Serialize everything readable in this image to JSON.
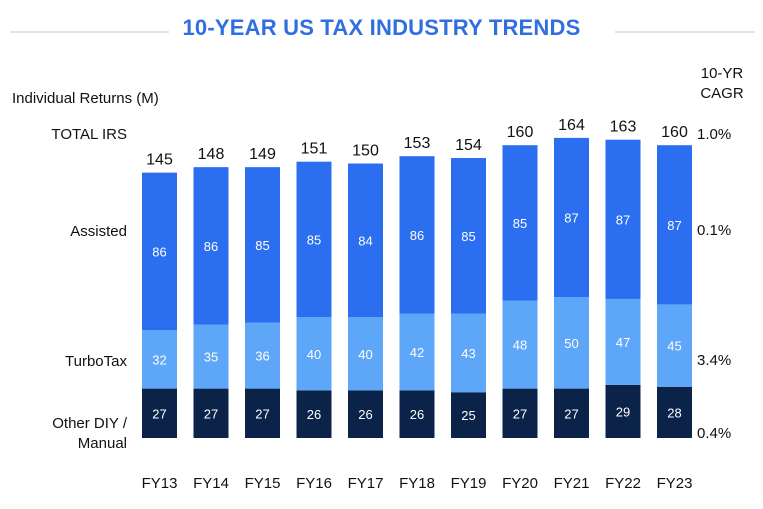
{
  "title": "10-YEAR US TAX INDUSTRY TRENDS",
  "ylabel": "Individual Returns (M)",
  "cagr_header_line1": "10-YR",
  "cagr_header_line2": "CAGR",
  "row_labels": {
    "total": "TOTAL IRS",
    "assisted": "Assisted",
    "turbotax": "TurboTax",
    "other_line1": "Other DIY /",
    "other_line2": "Manual"
  },
  "cagr": {
    "total": "1.0%",
    "assisted": "0.1%",
    "turbotax": "3.4%",
    "other": "0.4%"
  },
  "colors": {
    "title": "#2f6fe0",
    "assisted": "#2b6ef0",
    "turbotax": "#5ea6f7",
    "other": "#0b2348"
  },
  "chart_data": {
    "type": "bar",
    "stacked": true,
    "categories": [
      "FY13",
      "FY14",
      "FY15",
      "FY16",
      "FY17",
      "FY18",
      "FY19",
      "FY20",
      "FY21",
      "FY22",
      "FY23"
    ],
    "totals": [
      145,
      148,
      149,
      151,
      150,
      153,
      154,
      160,
      164,
      163,
      160
    ],
    "series": [
      {
        "name": "Other DIY / Manual",
        "values": [
          27,
          27,
          27,
          26,
          26,
          26,
          25,
          27,
          27,
          29,
          28
        ]
      },
      {
        "name": "TurboTax",
        "values": [
          32,
          35,
          36,
          40,
          40,
          42,
          43,
          48,
          50,
          47,
          45
        ]
      },
      {
        "name": "Assisted",
        "values": [
          86,
          86,
          85,
          85,
          84,
          86,
          85,
          85,
          87,
          87,
          87
        ]
      }
    ],
    "title": "10-YEAR US TAX INDUSTRY TRENDS",
    "ylabel": "Individual Returns (M)",
    "xlabel": ""
  }
}
